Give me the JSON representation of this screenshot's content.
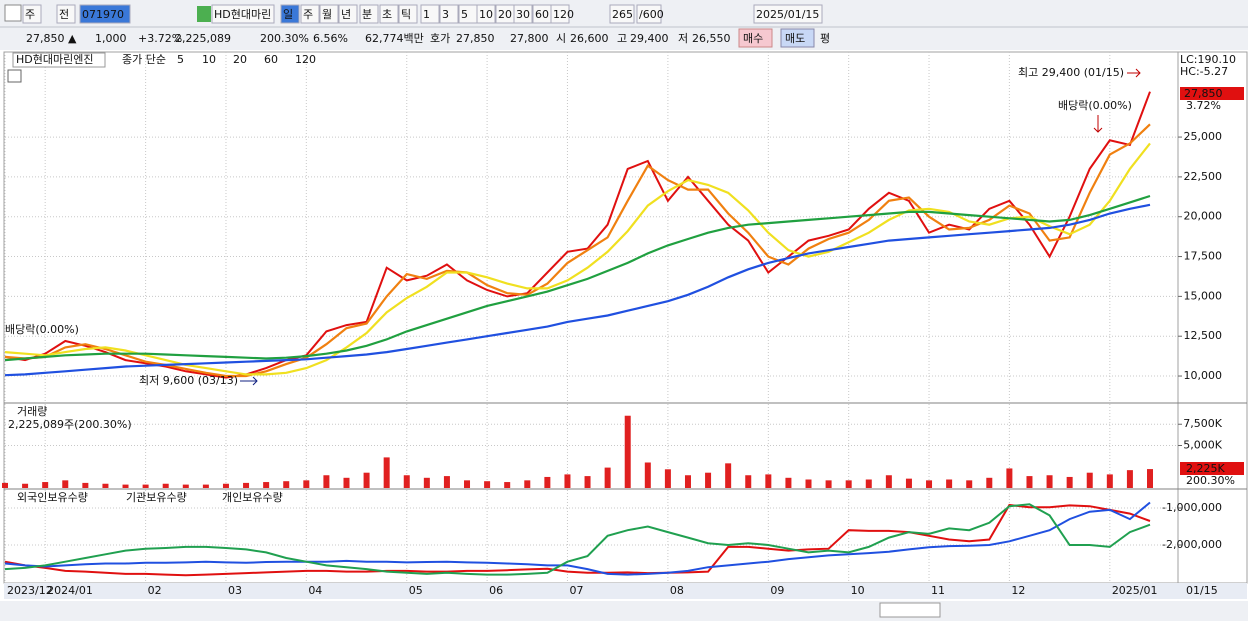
{
  "toolbar": [
    "주",
    "전",
    "071970",
    "HD현대마린",
    "일",
    "주",
    "월",
    "년",
    "분",
    "초",
    "틱",
    "1",
    "3",
    "5",
    "10",
    "20",
    "30",
    "60",
    "120",
    "265",
    "/600",
    "2025/01/15"
  ],
  "quote": [
    "27,850 ▲",
    "1,000",
    "+3.72%",
    "2,225,089",
    "200.30%",
    "6.56%",
    "62,774백만",
    "호가",
    "27,850",
    "27,800",
    "시",
    "26,600",
    "고",
    "29,400",
    "저",
    "26,550",
    "매수",
    "매도",
    "평"
  ],
  "chart_data": [
    {
      "type": "line",
      "title": "HD현대마린엔진",
      "legend_prefix": "종가 단순",
      "series": [
        {
          "name": "5",
          "color": "#e01010",
          "values": [
            11200,
            11000,
            11400,
            12200,
            11900,
            11500,
            11000,
            10800,
            10600,
            10300,
            10100,
            9900,
            10100,
            10500,
            11000,
            11300,
            12800,
            13200,
            13400,
            16800,
            16000,
            16300,
            17000,
            16000,
            15400,
            15000,
            15200,
            16500,
            17800,
            18000,
            19500,
            23000,
            23500,
            21000,
            22500,
            21000,
            19500,
            18500,
            16500,
            17500,
            18500,
            18800,
            19200,
            20500,
            21500,
            21000,
            19000,
            19500,
            19200,
            20500,
            21000,
            19500,
            17500,
            20000,
            23000,
            24800,
            24500,
            27850
          ]
        },
        {
          "name": "10",
          "color": "#f08010",
          "values": [
            11200,
            11100,
            11200,
            11800,
            12000,
            11700,
            11300,
            10900,
            10700,
            10450,
            10200,
            10000,
            10000,
            10300,
            10750,
            11150,
            12000,
            13000,
            13300,
            15000,
            16400,
            16100,
            16600,
            16500,
            15700,
            15200,
            15100,
            15800,
            17100,
            17900,
            18700,
            21000,
            23200,
            22300,
            21700,
            21700,
            20200,
            19000,
            17500,
            17000,
            18000,
            18600,
            19000,
            19800,
            21000,
            21200,
            20000,
            19200,
            19300,
            19800,
            20700,
            20200,
            18500,
            18700,
            21500,
            23900,
            24600,
            25800
          ]
        },
        {
          "name": "20",
          "color": "#f0e020",
          "values": [
            11500,
            11400,
            11300,
            11500,
            11700,
            11800,
            11600,
            11300,
            11000,
            10700,
            10500,
            10300,
            10100,
            10100,
            10200,
            10500,
            11000,
            11800,
            12700,
            14000,
            14900,
            15600,
            16500,
            16500,
            16200,
            15800,
            15500,
            15500,
            16000,
            16800,
            17800,
            19100,
            20700,
            21600,
            22300,
            22000,
            21500,
            20400,
            19000,
            17900,
            17500,
            17800,
            18400,
            19000,
            19800,
            20400,
            20500,
            20300,
            19700,
            19500,
            19900,
            20000,
            19400,
            18900,
            19500,
            21000,
            23000,
            24600
          ]
        },
        {
          "name": "60",
          "color": "#20a040",
          "values": [
            11000,
            11100,
            11200,
            11300,
            11350,
            11400,
            11400,
            11400,
            11350,
            11300,
            11250,
            11200,
            11150,
            11100,
            11150,
            11250,
            11400,
            11600,
            11900,
            12300,
            12800,
            13200,
            13600,
            14000,
            14400,
            14700,
            15000,
            15300,
            15700,
            16100,
            16600,
            17100,
            17700,
            18200,
            18600,
            19000,
            19300,
            19500,
            19600,
            19700,
            19800,
            19900,
            20000,
            20100,
            20200,
            20300,
            20300,
            20200,
            20100,
            20000,
            19900,
            19800,
            19700,
            19800,
            20100,
            20500,
            20900,
            21300
          ]
        },
        {
          "name": "120",
          "color": "#2050e0",
          "values": [
            10050,
            10100,
            10200,
            10300,
            10400,
            10500,
            10600,
            10650,
            10700,
            10750,
            10800,
            10850,
            10900,
            10950,
            11000,
            11050,
            11150,
            11250,
            11350,
            11500,
            11700,
            11900,
            12100,
            12300,
            12500,
            12700,
            12900,
            13100,
            13400,
            13600,
            13800,
            14100,
            14400,
            14700,
            15100,
            15600,
            16200,
            16700,
            17100,
            17400,
            17700,
            17900,
            18100,
            18300,
            18500,
            18600,
            18700,
            18800,
            18900,
            19000,
            19100,
            19200,
            19300,
            19500,
            19800,
            20200,
            20500,
            20750
          ]
        }
      ],
      "ylim": [
        8370,
        30340
      ],
      "yticks": [
        {
          "value": 10000,
          "label": "10,000"
        },
        {
          "value": 12500,
          "label": "12,500"
        },
        {
          "value": 15000,
          "label": "15,000"
        },
        {
          "value": 17500,
          "label": "17,500"
        },
        {
          "value": 20000,
          "label": "20,000"
        },
        {
          "value": 22500,
          "label": "22,500"
        },
        {
          "value": 25000,
          "label": "25,000"
        }
      ],
      "grid": true,
      "high_label": "최고 29,400 (01/15)",
      "low_label": "최저 9,600 (03/13)",
      "dividend_labels": [
        "배당락(0.00%)",
        "배당락(0.00%)"
      ],
      "lc_label": "LC:190.10",
      "hc_label": "HC:-5.27",
      "last_label": "27,850",
      "change_label": "3.72%"
    },
    {
      "type": "bar",
      "title": "거래량",
      "subtitle": "2,225,089주(200.30%)",
      "color": "#e02020",
      "values": [
        600000,
        500000,
        700000,
        900000,
        600000,
        500000,
        400000,
        400000,
        500000,
        400000,
        400000,
        500000,
        600000,
        700000,
        800000,
        900000,
        1500000,
        1200000,
        1800000,
        3600000,
        1500000,
        1200000,
        1400000,
        900000,
        800000,
        700000,
        900000,
        1300000,
        1600000,
        1400000,
        2400000,
        8500000,
        3000000,
        2200000,
        1500000,
        1800000,
        2900000,
        1500000,
        1600000,
        1200000,
        1000000,
        900000,
        900000,
        1000000,
        1500000,
        1100000,
        900000,
        1000000,
        900000,
        1200000,
        2300000,
        1400000,
        1500000,
        1300000,
        1800000,
        1600000,
        2100000,
        2225089
      ],
      "ylim": [
        0,
        9880000
      ],
      "yticks": [
        {
          "value": 5000000,
          "label": "5,000K"
        },
        {
          "value": 7500000,
          "label": "7,500K"
        }
      ],
      "grid": true,
      "last_label": "2,225K",
      "ratio_label": "200.30%"
    },
    {
      "type": "line",
      "categories": [
        "2023/12",
        null,
        "2024/01",
        null,
        null,
        null,
        null,
        "02",
        null,
        null,
        null,
        "03",
        null,
        null,
        null,
        "04",
        null,
        null,
        null,
        null,
        "05",
        null,
        null,
        null,
        "06",
        null,
        null,
        null,
        "07",
        null,
        null,
        null,
        null,
        "08",
        null,
        null,
        null,
        null,
        "09",
        null,
        null,
        null,
        "10",
        null,
        null,
        null,
        "11",
        null,
        null,
        null,
        "12",
        null,
        null,
        null,
        null,
        "2025/01",
        null,
        null
      ],
      "x_end_label": "01/15",
      "series": [
        {
          "name": "외국인보유수량",
          "color": "#e01010",
          "values": [
            -2450000,
            -2550000,
            -2620000,
            -2700000,
            -2720000,
            -2750000,
            -2780000,
            -2780000,
            -2800000,
            -2820000,
            -2800000,
            -2780000,
            -2760000,
            -2740000,
            -2720000,
            -2700000,
            -2700000,
            -2720000,
            -2720000,
            -2700000,
            -2700000,
            -2720000,
            -2720000,
            -2700000,
            -2700000,
            -2680000,
            -2660000,
            -2640000,
            -2720000,
            -2750000,
            -2750000,
            -2740000,
            -2760000,
            -2750000,
            -2740000,
            -2720000,
            -2050000,
            -2050000,
            -2100000,
            -2150000,
            -2120000,
            -2100000,
            -1600000,
            -1620000,
            -1620000,
            -1650000,
            -1750000,
            -1850000,
            -1900000,
            -1850000,
            -920000,
            -980000,
            -980000,
            -930000,
            -950000,
            -1050000,
            -1150000,
            -1350000
          ]
        },
        {
          "name": "기관보유수량",
          "color": "#2050e0",
          "values": [
            -2500000,
            -2550000,
            -2580000,
            -2550000,
            -2520000,
            -2500000,
            -2500000,
            -2480000,
            -2480000,
            -2470000,
            -2450000,
            -2470000,
            -2480000,
            -2460000,
            -2450000,
            -2450000,
            -2450000,
            -2430000,
            -2450000,
            -2450000,
            -2470000,
            -2460000,
            -2450000,
            -2470000,
            -2480000,
            -2500000,
            -2520000,
            -2550000,
            -2550000,
            -2650000,
            -2780000,
            -2800000,
            -2780000,
            -2750000,
            -2700000,
            -2600000,
            -2550000,
            -2500000,
            -2450000,
            -2380000,
            -2330000,
            -2280000,
            -2250000,
            -2220000,
            -2180000,
            -2120000,
            -2060000,
            -2030000,
            -2020000,
            -2000000,
            -1900000,
            -1750000,
            -1600000,
            -1300000,
            -1100000,
            -1050000,
            -1300000,
            -850000
          ]
        },
        {
          "name": "개인보유수량",
          "color": "#20a050",
          "values": [
            -2650000,
            -2620000,
            -2550000,
            -2450000,
            -2350000,
            -2250000,
            -2150000,
            -2100000,
            -2080000,
            -2050000,
            -2050000,
            -2080000,
            -2120000,
            -2200000,
            -2350000,
            -2450000,
            -2550000,
            -2600000,
            -2650000,
            -2720000,
            -2750000,
            -2780000,
            -2750000,
            -2780000,
            -2800000,
            -2800000,
            -2780000,
            -2750000,
            -2450000,
            -2300000,
            -1750000,
            -1600000,
            -1500000,
            -1650000,
            -1800000,
            -1950000,
            -2000000,
            -1950000,
            -2000000,
            -2100000,
            -2200000,
            -2150000,
            -2200000,
            -2050000,
            -1800000,
            -1650000,
            -1700000,
            -1550000,
            -1600000,
            -1400000,
            -950000,
            -900000,
            -1200000,
            -2000000,
            -2000000,
            -2050000,
            -1650000,
            -1450000
          ]
        }
      ],
      "ylim": [
        -3027000,
        -513500
      ],
      "yticks": [
        {
          "value": -2000000,
          "label": "-2,000,000"
        },
        {
          "value": -1000000,
          "label": "-1,000,000"
        }
      ],
      "grid": true
    }
  ]
}
